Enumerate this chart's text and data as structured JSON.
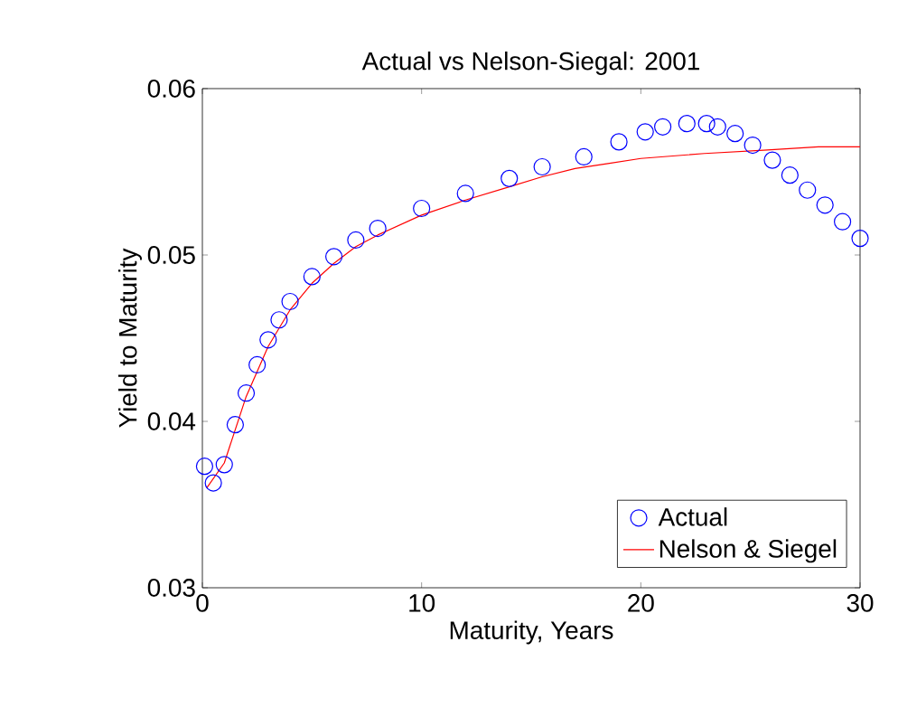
{
  "chart_data": {
    "type": "scatter",
    "title": "Actual vs Nelson-Siegal: 2001",
    "xlabel": "Maturity, Years",
    "ylabel": "Yield to Maturity",
    "xlim": [
      0,
      30
    ],
    "ylim": [
      0.03,
      0.06
    ],
    "xticks": [
      0,
      10,
      20,
      30
    ],
    "yticks": [
      0.03,
      0.04,
      0.05,
      0.06
    ],
    "legend": "bottom right",
    "grid": false,
    "series": [
      {
        "name": "Actual",
        "marker": "circle",
        "color": "#0000ff",
        "x": [
          0.1,
          0.5,
          1,
          1.5,
          2,
          2.5,
          3,
          3.5,
          4,
          5,
          6,
          7,
          8,
          10,
          12,
          14,
          15.5,
          17.4,
          19,
          20.2,
          21,
          22.1,
          23,
          23.5,
          24.3,
          25.1,
          26,
          26.8,
          27.6,
          28.4,
          29.2,
          30
        ],
        "values": [
          0.0373,
          0.0363,
          0.0374,
          0.0398,
          0.0417,
          0.0434,
          0.0449,
          0.0461,
          0.0472,
          0.0487,
          0.0499,
          0.0509,
          0.0516,
          0.0528,
          0.0537,
          0.0546,
          0.0553,
          0.0559,
          0.0568,
          0.0574,
          0.0577,
          0.0579,
          0.0579,
          0.0577,
          0.0573,
          0.0566,
          0.0557,
          0.0548,
          0.0539,
          0.053,
          0.052,
          0.051
        ]
      },
      {
        "name": "Nelson & Siegel",
        "type": "line",
        "marker": "none",
        "line_style": "solid",
        "color": "#ff0000",
        "x": [
          0.2,
          1,
          2,
          3,
          4,
          5,
          6,
          7,
          8,
          10,
          12,
          14,
          15.5,
          17,
          18.5,
          20,
          22.9,
          25.6,
          28.1,
          30
        ],
        "values": [
          0.036,
          0.0375,
          0.0415,
          0.0445,
          0.0467,
          0.0483,
          0.0495,
          0.0505,
          0.0512,
          0.0524,
          0.0533,
          0.0541,
          0.0547,
          0.0552,
          0.0555,
          0.0558,
          0.0561,
          0.0563,
          0.0565,
          0.0565
        ]
      }
    ]
  }
}
